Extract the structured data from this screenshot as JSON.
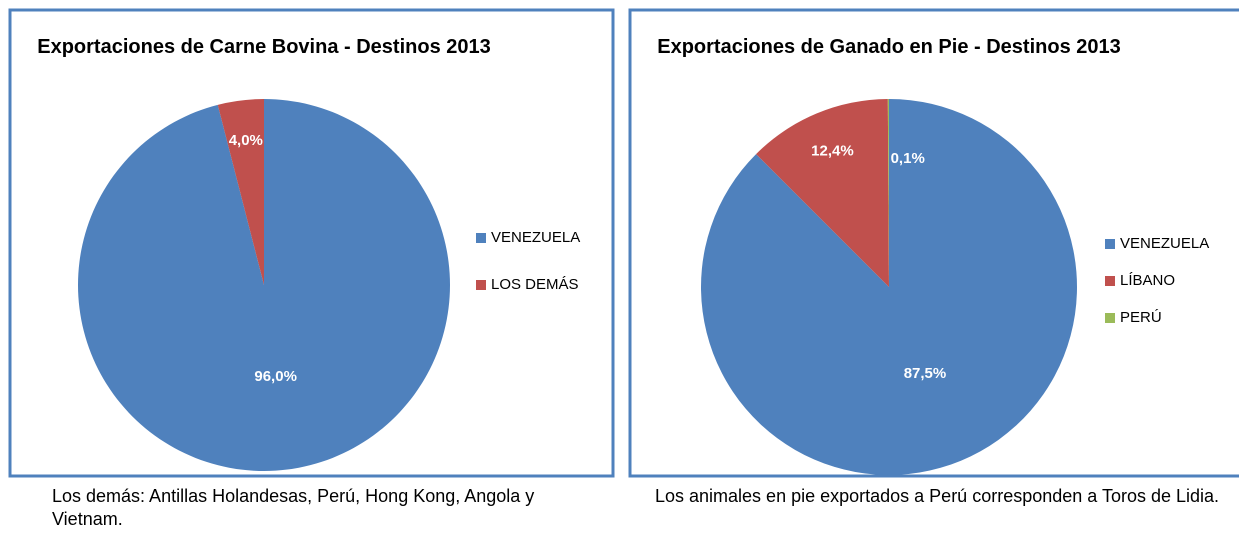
{
  "chart_data": [
    {
      "type": "pie",
      "title": "Exportaciones de Carne Bovina - Destinos 2013",
      "categories": [
        "VENEZUELA",
        "LOS DEMÁS"
      ],
      "values": [
        96,
        4
      ],
      "value_labels": [
        "96,0%",
        "4,0%"
      ],
      "colors": [
        "#4f81bd",
        "#c0504d"
      ],
      "legend": "right",
      "note": "Los demás: Antillas Holandesas, Perú, Hong Kong,  Angola y Vietnam."
    },
    {
      "type": "pie",
      "title": "Exportaciones de Ganado en Pie - Destinos 2013",
      "categories": [
        "VENEZUELA",
        "LÍBANO",
        "PERÚ"
      ],
      "values": [
        87.5,
        12.4,
        0.1
      ],
      "value_labels": [
        "87,5%",
        "12,4%",
        "0,1%"
      ],
      "colors": [
        "#4f81bd",
        "#c0504d",
        "#9bbb59"
      ],
      "legend": "right",
      "note": "Los animales  en  pie exportados a Perú corresponden a Toros de Lidia."
    }
  ]
}
